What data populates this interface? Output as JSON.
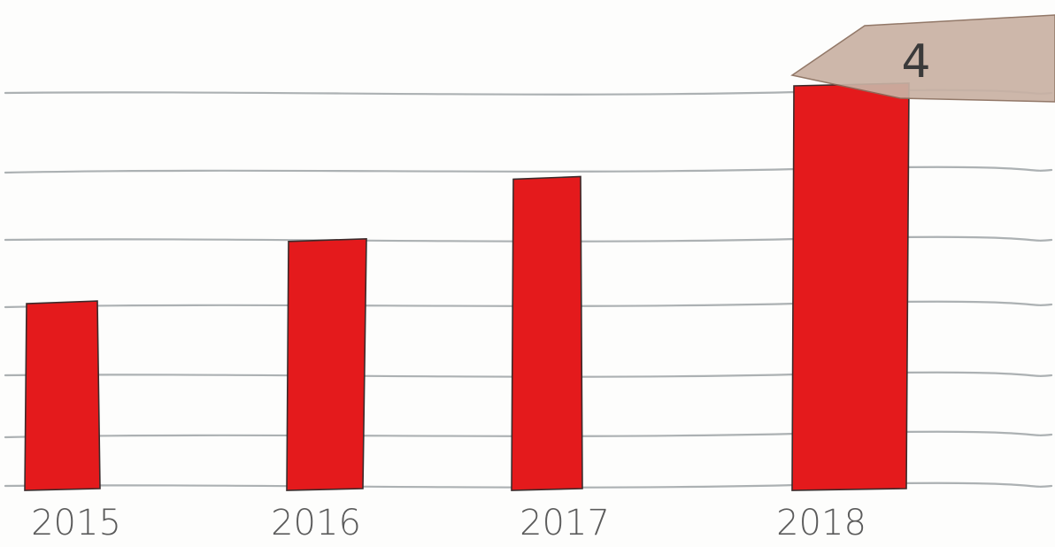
{
  "chart_data": {
    "type": "bar",
    "title": "",
    "xlabel": "",
    "ylabel": "",
    "categories": [
      "2015",
      "2016",
      "2017",
      "2018"
    ],
    "values": [
      3,
      4,
      5,
      6.5
    ],
    "ylim": [
      0,
      6.5
    ],
    "grid": true,
    "bar_color": "#e41a1c",
    "annotation": {
      "text": "4",
      "category": "2018",
      "color": "#c9b2a4"
    }
  }
}
